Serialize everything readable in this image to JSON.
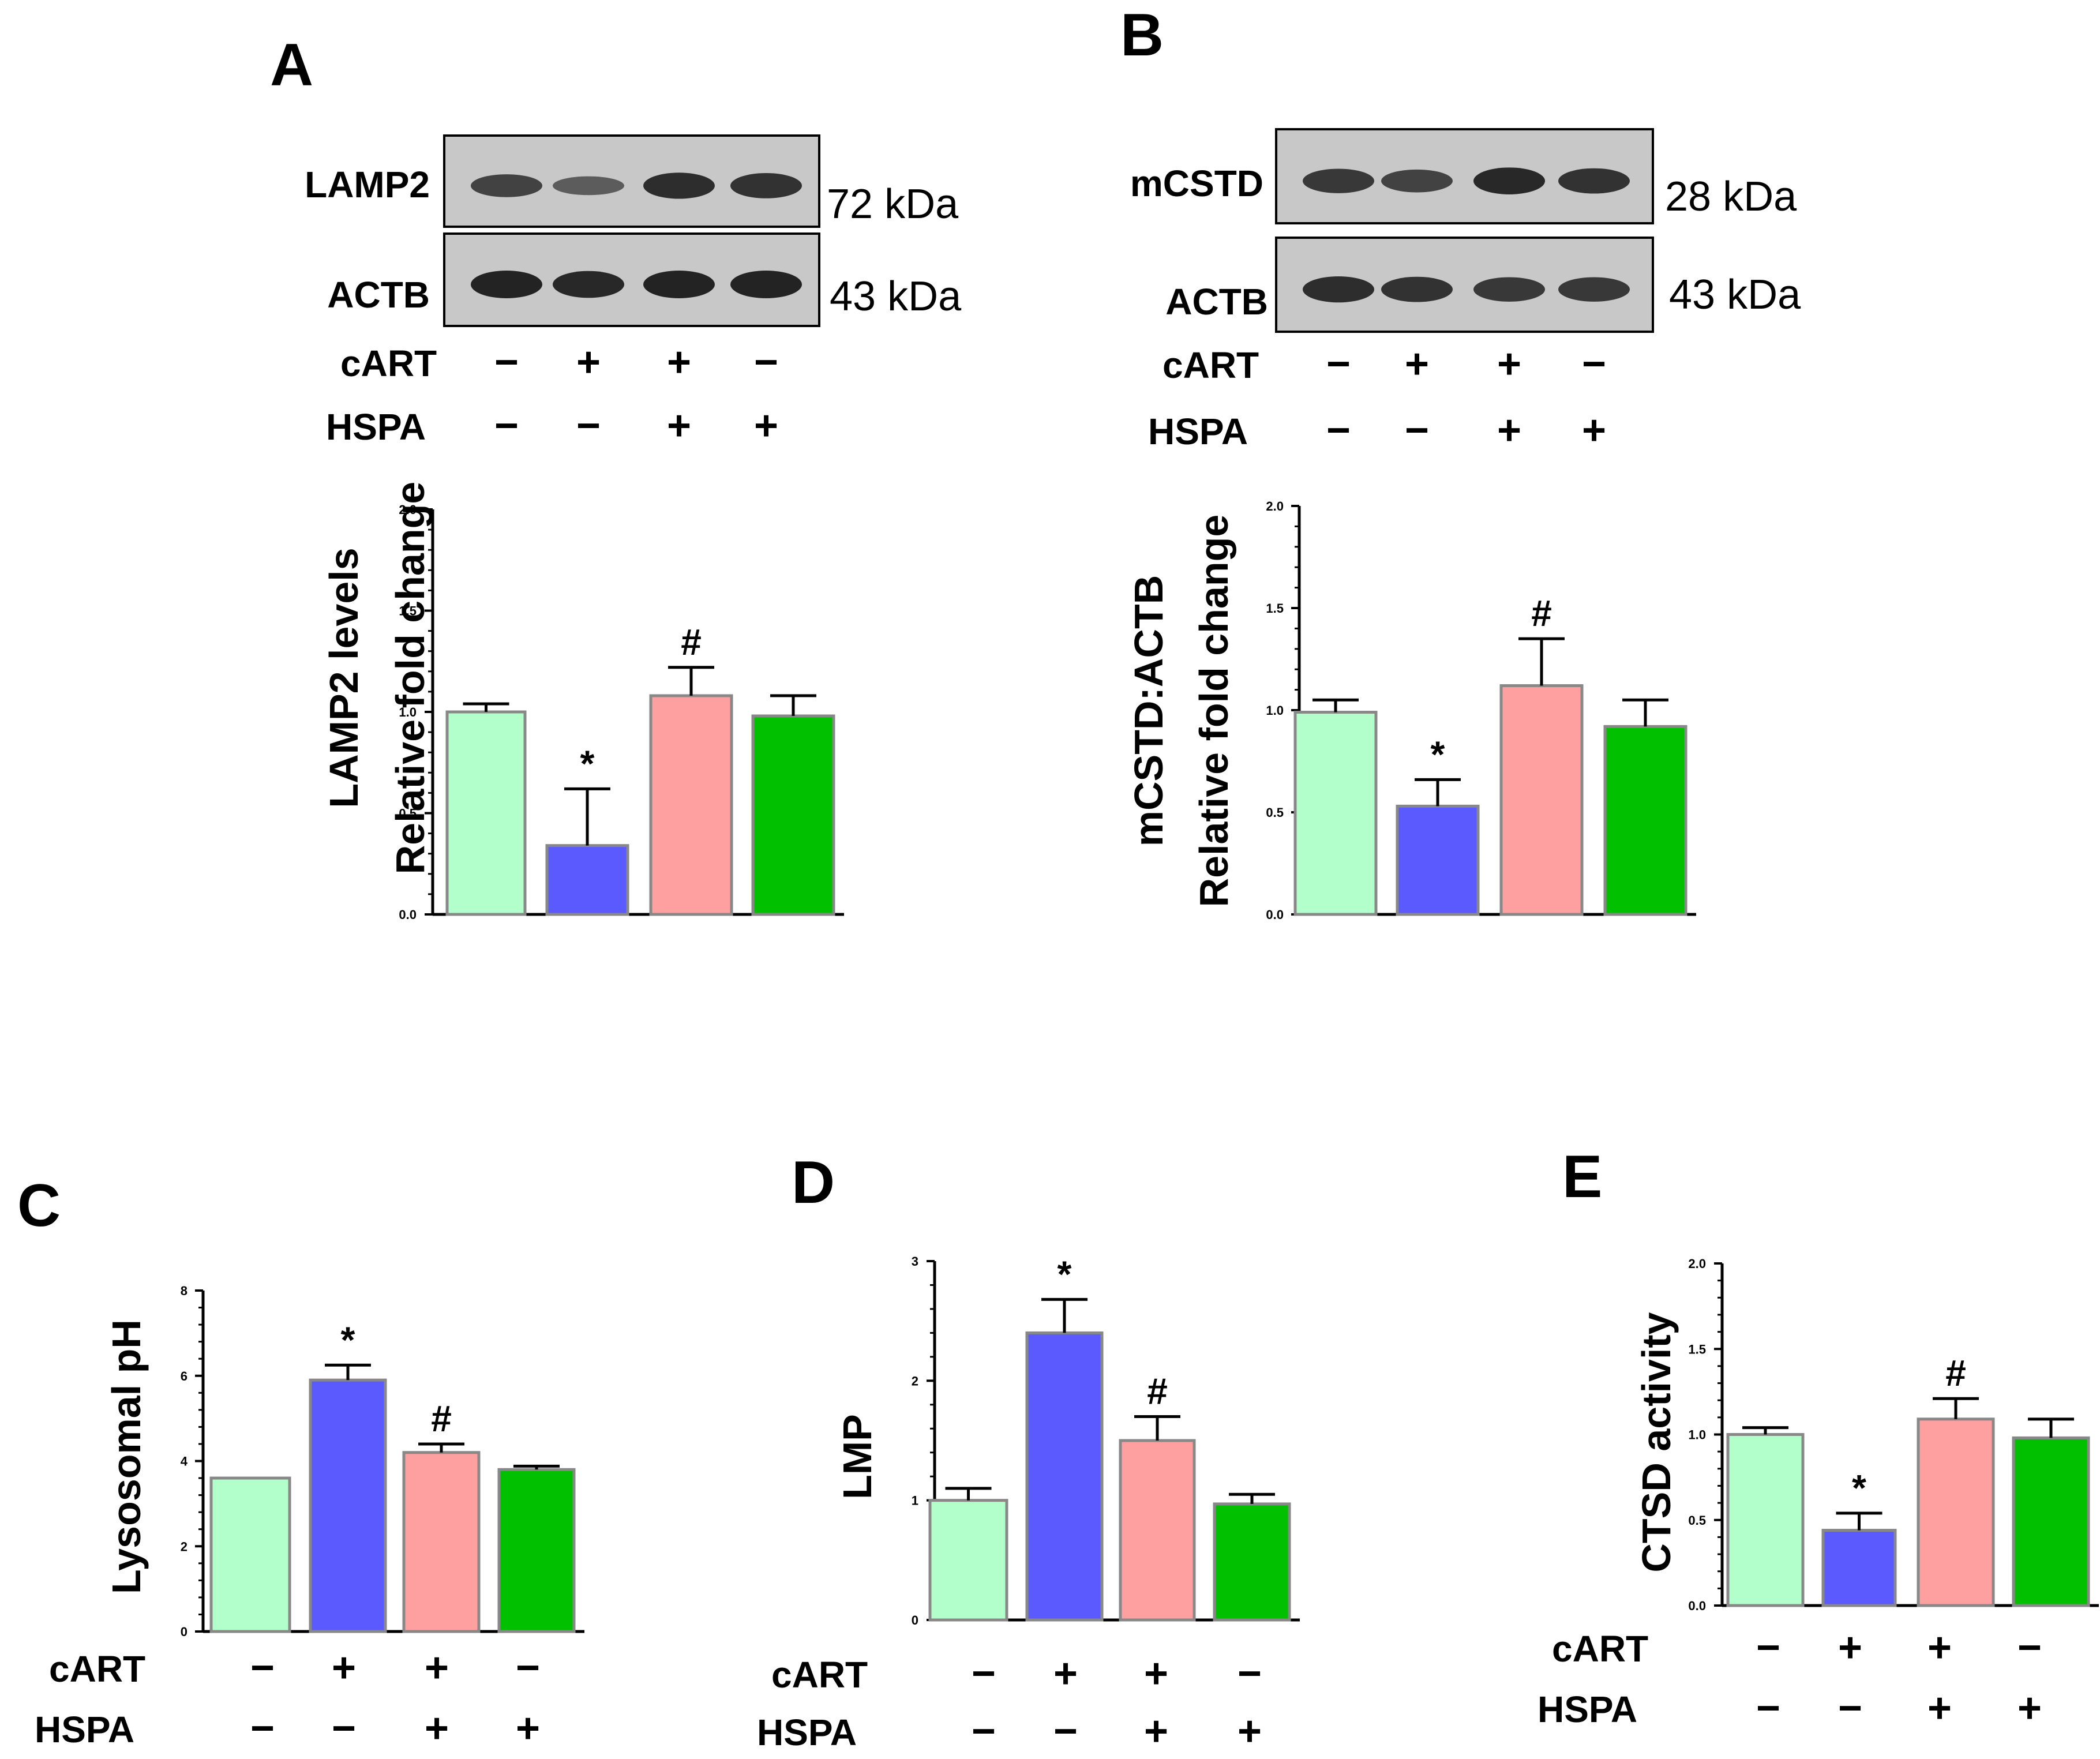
{
  "colors": {
    "series": [
      "#b3ffcc",
      "#5a5aff",
      "#ffa0a0",
      "#00c000"
    ],
    "outline": "#888888",
    "blot_background": "#c8c8c8",
    "band": "#1a1a1a"
  },
  "treatments": {
    "row1_label": "cART",
    "row2_label": "HSPA",
    "row1_signs": [
      "−",
      "+",
      "+",
      "−"
    ],
    "row2_signs": [
      "−",
      "−",
      "+",
      "+"
    ]
  },
  "blots": {
    "A": {
      "top_label": "LAMP2",
      "top_kda": "72 kDa",
      "bottom_label": "ACTB",
      "bottom_kda": "43 kDa",
      "top_band_strength": [
        0.7,
        0.45,
        0.9,
        0.85
      ],
      "bottom_band_strength": [
        1,
        0.95,
        1,
        1
      ]
    },
    "B": {
      "top_label": "mCSTD",
      "top_kda": "28 kDa",
      "bottom_label": "ACTB",
      "bottom_kda": "43 kDa",
      "top_band_strength": [
        0.8,
        0.7,
        0.95,
        0.85
      ],
      "bottom_band_strength": [
        0.9,
        0.85,
        0.8,
        0.8
      ]
    }
  },
  "chart_data": [
    {
      "panel": "A",
      "type": "bar",
      "ylabel_lines": [
        "LAMP2 levels",
        "Relative fold change"
      ],
      "ylim": [
        0,
        2.0
      ],
      "yticks": [
        "0.0",
        "0.5",
        "1.0",
        "1.5",
        "2.0"
      ],
      "values": [
        1.0,
        0.34,
        1.08,
        0.98
      ],
      "errors": [
        0.04,
        0.28,
        0.14,
        0.1
      ],
      "annotations": [
        "",
        "*",
        "#",
        ""
      ]
    },
    {
      "panel": "B",
      "type": "bar",
      "ylabel_lines": [
        "mCSTD:ACTB",
        "Relative fold change"
      ],
      "ylim": [
        0,
        2.0
      ],
      "yticks": [
        "0.0",
        "0.5",
        "1.0",
        "1.5",
        "2.0"
      ],
      "values": [
        0.99,
        0.53,
        1.12,
        0.92
      ],
      "errors": [
        0.06,
        0.13,
        0.23,
        0.13
      ],
      "annotations": [
        "",
        "*",
        "#",
        ""
      ]
    },
    {
      "panel": "C",
      "type": "bar",
      "ylabel_lines": [
        "Lysosomal pH"
      ],
      "ylim": [
        0,
        8
      ],
      "yticks": [
        "0",
        "2",
        "4",
        "6",
        "8"
      ],
      "values": [
        3.6,
        5.9,
        4.2,
        3.8
      ],
      "errors": [
        0,
        0.35,
        0.2,
        0.08
      ],
      "annotations": [
        "",
        "*",
        "#",
        ""
      ]
    },
    {
      "panel": "D",
      "type": "bar",
      "ylabel_lines": [
        "LMP"
      ],
      "ylim": [
        0,
        3
      ],
      "yticks": [
        "0",
        "1",
        "2",
        "3"
      ],
      "values": [
        1.0,
        2.4,
        1.5,
        0.97
      ],
      "errors": [
        0.1,
        0.28,
        0.2,
        0.08
      ],
      "annotations": [
        "",
        "*",
        "#",
        ""
      ]
    },
    {
      "panel": "E",
      "type": "bar",
      "ylabel_lines": [
        "CTSD activity"
      ],
      "ylim": [
        0,
        2.0
      ],
      "yticks": [
        "0.0",
        "0.5",
        "1.0",
        "1.5",
        "2.0"
      ],
      "values": [
        1.0,
        0.44,
        1.09,
        0.98
      ],
      "errors": [
        0.04,
        0.1,
        0.12,
        0.11
      ],
      "annotations": [
        "",
        "*",
        "#",
        ""
      ]
    }
  ]
}
